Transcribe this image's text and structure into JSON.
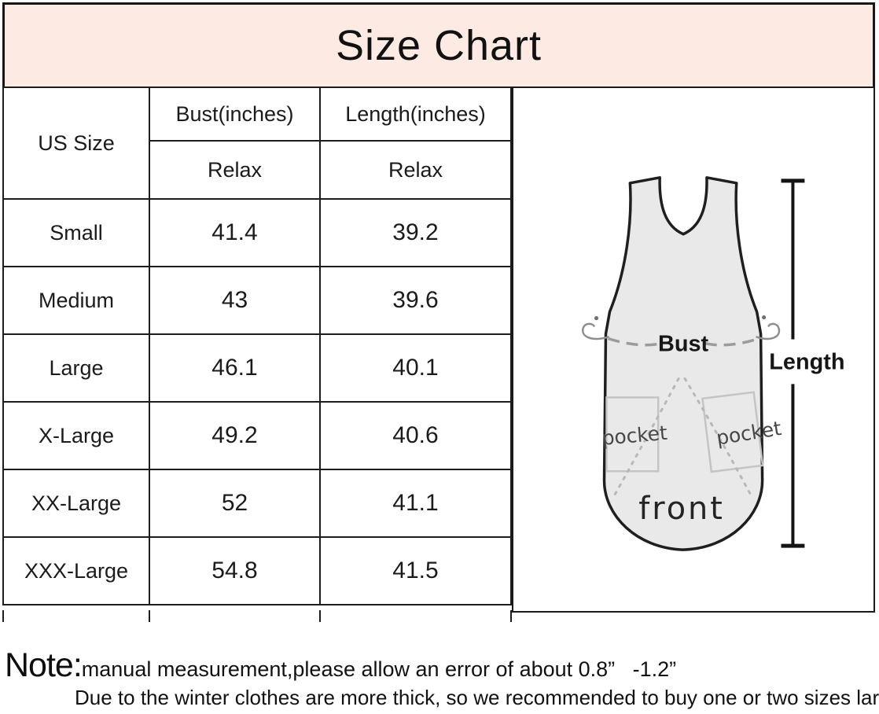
{
  "title": "Size Chart",
  "table": {
    "col1_header": "US Size",
    "col2_header": "Bust(inches)",
    "col3_header": "Length(inches)",
    "col2_subheader": "Relax",
    "col3_subheader": "Relax",
    "rows": [
      {
        "size": "Small",
        "bust": "41.4",
        "length": "39.2"
      },
      {
        "size": "Medium",
        "bust": "43",
        "length": "39.6"
      },
      {
        "size": "Large",
        "bust": "46.1",
        "length": "40.1"
      },
      {
        "size": "X-Large",
        "bust": "49.2",
        "length": "40.6"
      },
      {
        "size": "XX-Large",
        "bust": "52",
        "length": "41.1"
      },
      {
        "size": "XXX-Large",
        "bust": "54.8",
        "length": "41.5"
      }
    ]
  },
  "diagram": {
    "bust_label": "Bust",
    "length_label": "Length",
    "front_label": "front",
    "pocket_left_label": "pocket",
    "pocket_right_label": "pocket"
  },
  "note": {
    "label": "Note:",
    "line1": "manual measurement,please allow an error of about 0.8”   -1.2”",
    "line2": "Due to the winter clothes are more thick, so we recommended to buy one or two sizes larger"
  },
  "colors": {
    "title_background": "#fceae3",
    "border": "#1a1a1a",
    "apron_fill": "#e9e9e9",
    "dash_gray": "#9b9b9b"
  },
  "chart_data": {
    "type": "table",
    "title": "Size Chart",
    "columns": [
      "US Size",
      "Bust(inches) Relax",
      "Length(inches) Relax"
    ],
    "rows": [
      [
        "Small",
        41.4,
        39.2
      ],
      [
        "Medium",
        43,
        39.6
      ],
      [
        "Large",
        46.1,
        40.1
      ],
      [
        "X-Large",
        49.2,
        40.6
      ],
      [
        "XX-Large",
        52,
        41.1
      ],
      [
        "XXX-Large",
        54.8,
        41.5
      ]
    ],
    "units": "inches",
    "notes": [
      "manual measurement,please allow an error of about 0.8”   -1.2”",
      "Due to the winter clothes are more thick, so we recommended to buy one or two sizes larger"
    ]
  }
}
